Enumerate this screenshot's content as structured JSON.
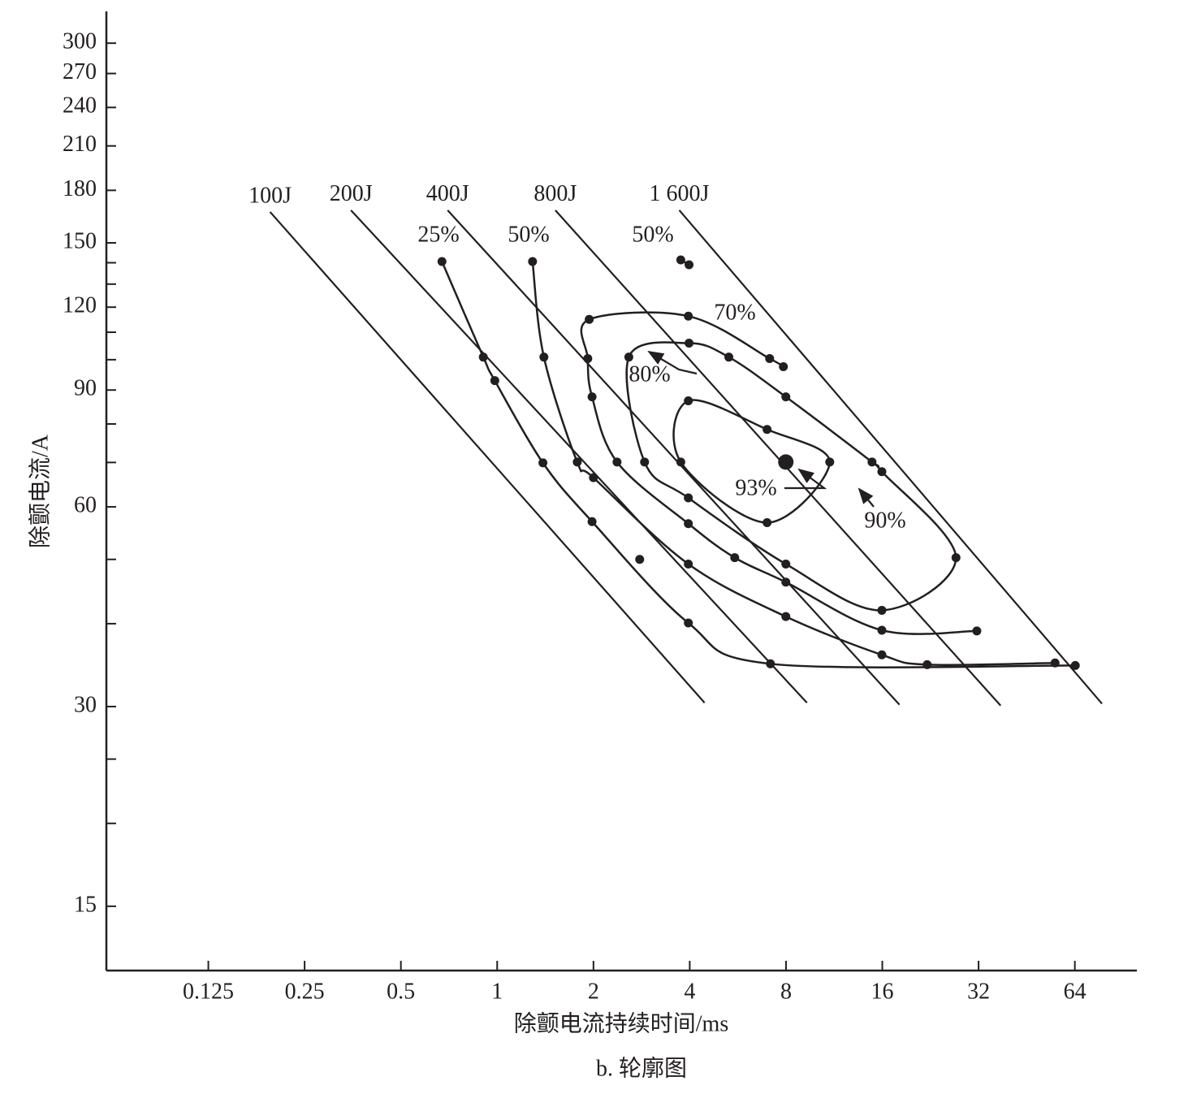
{
  "chart_data": {
    "type": "line",
    "x_label": "除颤电流持续时间/ms",
    "y_label": "除颤电流/A",
    "caption": "b. 轮廓图",
    "xscale": "log",
    "yscale": "log",
    "color": "#231f20",
    "xlim": [
      0.06,
      100
    ],
    "ylim": [
      12,
      335
    ],
    "xticks": [
      0.125,
      0.25,
      0.5,
      1,
      2,
      4,
      8,
      16,
      32,
      64
    ],
    "yticks": [
      15,
      30,
      60,
      90,
      120,
      150,
      180,
      210,
      240,
      270,
      300
    ],
    "yminor_ticks": [
      20,
      25,
      40,
      50,
      70,
      80,
      100,
      110,
      130,
      140
    ],
    "energy_lines": [
      {
        "name": "100J",
        "x": [
          0.195,
          4.45
        ],
        "y": [
          167,
          30.4
        ]
      },
      {
        "name": "200J",
        "x": [
          0.349,
          9.3
        ],
        "y": [
          168,
          30.4
        ]
      },
      {
        "name": "400J",
        "x": [
          0.7,
          18.1
        ],
        "y": [
          168,
          30.2
        ]
      },
      {
        "name": "800J",
        "x": [
          1.52,
          37.5
        ],
        "y": [
          168,
          30.1
        ]
      },
      {
        "name": "1 600J",
        "x": [
          3.71,
          77.8
        ],
        "y": [
          168,
          30.3
        ]
      }
    ],
    "contours": [
      {
        "name": "25%",
        "closed": false,
        "x": [
          0.672,
          0.905,
          0.983,
          1.39,
          1.98,
          3.96,
          7.15,
          64.2
        ],
        "y": [
          140.6,
          100.9,
          93.0,
          69.9,
          57.0,
          40.1,
          34.8,
          34.6
        ]
      },
      {
        "name": "50%",
        "closed": false,
        "x": [
          1.29,
          1.4,
          1.78,
          2.0,
          3.96,
          7.99,
          15.95,
          22.1,
          55.5
        ],
        "y": [
          140.6,
          100.9,
          70.1,
          66.4,
          49.2,
          41.0,
          35.9,
          34.7,
          34.9
        ]
      },
      {
        "name": "70%",
        "closed": false,
        "x": [
          7.85,
          7.11,
          3.96,
          1.94,
          1.92,
          1.98,
          2.37,
          3.96,
          5.53,
          7.99,
          15.95,
          31.6
        ],
        "y": [
          97.6,
          100.4,
          116.3,
          115.0,
          100.4,
          87.9,
          70.1,
          56.6,
          50.3,
          46.2,
          39.1,
          39.0
        ]
      },
      {
        "name": "80%",
        "closed": true,
        "x": [
          15.95,
          7.99,
          3.96,
          2.89,
          2.58,
          3.98,
          5.3,
          7.99,
          14.86,
          15.95,
          27.2
        ],
        "y": [
          41.9,
          49.2,
          61.9,
          70.1,
          100.9,
          105.9,
          100.9,
          87.9,
          70.1,
          67.8,
          50.3
        ]
      },
      {
        "name": "90%",
        "closed": true,
        "x": [
          3.96,
          6.98,
          10.96,
          6.98,
          3.75
        ],
        "y": [
          86.7,
          78.5,
          70.1,
          56.8,
          70.1
        ]
      },
      {
        "name": "50%",
        "closed": false,
        "x": [
          3.75,
          3.98
        ],
        "y": [
          141.4,
          139.0
        ]
      }
    ],
    "peak": {
      "label": "93%",
      "x": 7.99,
      "y": 70.1
    },
    "points": {
      "x": [
        2.79
      ],
      "y": [
        50.0
      ]
    }
  }
}
